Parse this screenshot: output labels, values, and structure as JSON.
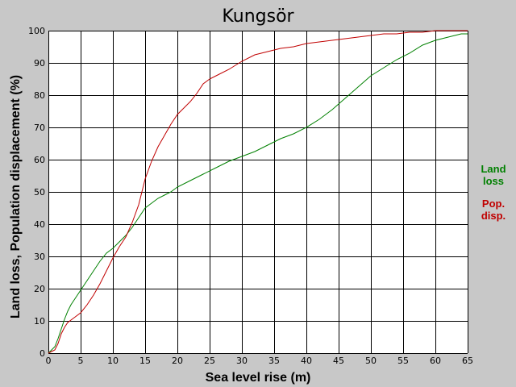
{
  "chart_data": {
    "type": "line",
    "title": "Kungsör",
    "xlabel": "Sea level rise (m)",
    "ylabel": "Land loss, Population displacement (%)",
    "xlim": [
      0,
      65
    ],
    "ylim": [
      0,
      100
    ],
    "xticks": [
      0,
      5,
      10,
      15,
      20,
      25,
      30,
      35,
      40,
      45,
      50,
      55,
      60,
      65
    ],
    "yticks": [
      0,
      10,
      20,
      30,
      40,
      50,
      60,
      70,
      80,
      90,
      100
    ],
    "grid": true,
    "background": "#ffffff",
    "page_background": "#c8c8c8",
    "legend_position": "right",
    "series": [
      {
        "name": "Land\nloss",
        "legend_lines": [
          "Land",
          "loss"
        ],
        "color": "#008000",
        "x": [
          0,
          0.5,
          1,
          1.5,
          2,
          2.5,
          3,
          3.5,
          4,
          5,
          6,
          7,
          8,
          9,
          10,
          11,
          12,
          13,
          14,
          15,
          16,
          17,
          18,
          19,
          20,
          22,
          24,
          26,
          28,
          30,
          32,
          34,
          36,
          38,
          40,
          42,
          44,
          46,
          48,
          50,
          52,
          54,
          56,
          58,
          60,
          62,
          64,
          65
        ],
        "y": [
          0,
          1,
          2,
          4.5,
          7.5,
          10.5,
          13,
          15,
          16.5,
          19.5,
          22.5,
          25.5,
          28.5,
          31,
          32.5,
          34.5,
          36.5,
          39,
          42,
          45,
          46.5,
          48,
          49,
          50,
          51.5,
          53.5,
          55.5,
          57.5,
          59.5,
          61,
          62.5,
          64.5,
          66.5,
          68,
          70,
          72.5,
          75.5,
          79,
          82.5,
          86,
          88.5,
          91,
          93,
          95.5,
          97,
          98,
          99,
          99
        ]
      },
      {
        "name": "Pop.\ndisp.",
        "legend_lines": [
          "Pop.",
          "disp."
        ],
        "color": "#c00000",
        "x": [
          0,
          0.5,
          1,
          1.5,
          2,
          2.5,
          3,
          4,
          5,
          6,
          7,
          8,
          9,
          10,
          11,
          12,
          13,
          14,
          15,
          16,
          17,
          18,
          19,
          20,
          21,
          22,
          23,
          24,
          25,
          26,
          28,
          30,
          32,
          34,
          36,
          38,
          40,
          42,
          44,
          46,
          48,
          50,
          52,
          54,
          56,
          58,
          60,
          62,
          64,
          65
        ],
        "y": [
          0,
          0.5,
          1,
          3,
          6,
          8,
          9.5,
          11,
          12.5,
          15,
          18,
          21.5,
          25.5,
          29.5,
          33,
          36,
          40.5,
          46,
          54,
          59.5,
          64,
          67.5,
          71,
          74,
          76,
          78,
          80.5,
          83.5,
          85,
          86,
          88,
          90.5,
          92.5,
          93.5,
          94.5,
          95,
          96,
          96.5,
          97,
          97.5,
          98,
          98.5,
          99,
          99,
          99.5,
          99.5,
          100,
          100,
          100,
          100
        ]
      }
    ]
  }
}
